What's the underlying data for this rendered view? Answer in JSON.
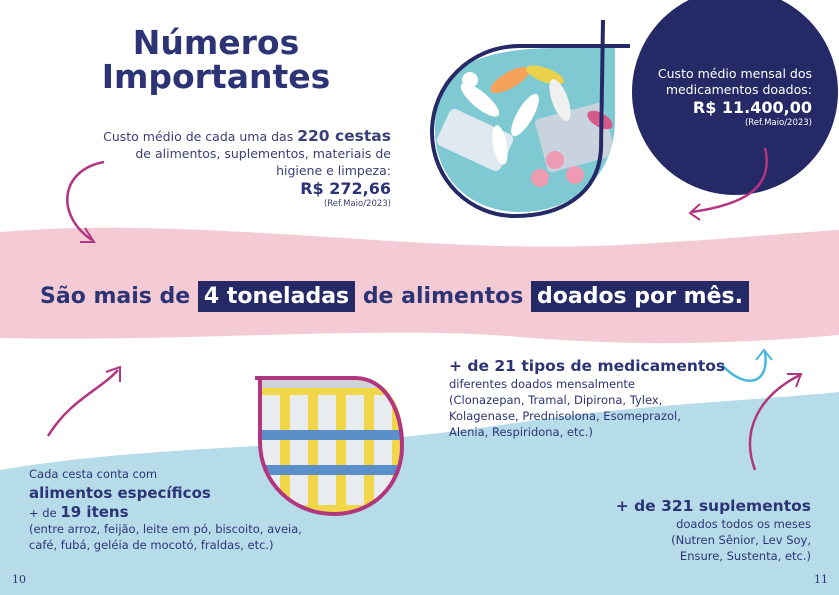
{
  "title": "Números\nImportantes",
  "cestas_block": {
    "prefix": "Custo médio de cada uma das",
    "highlight": "220 cestas",
    "rest": "de alimentos, suplementos, materiais de higiene e limpeza:",
    "price": "R$ 272,66",
    "ref": "(Ref.Maio/2023)"
  },
  "medicamentos_cost": {
    "label": "Custo médio mensal dos medicamentos doados:",
    "price": "R$ 11.400,00",
    "ref": "(Ref.Maio/2023)"
  },
  "banner": {
    "part1": "São mais de",
    "hl1": "4 toneladas",
    "part2": "de  alimentos",
    "hl2": "doados por mês."
  },
  "medicamentos_types": {
    "head": "+ de 21 tipos de medicamentos",
    "body": "diferentes doados mensalmente (Clonazepan, Tramal, Dipirona, Tylex, Kolagenase, Prednisolona, Esomeprazol, Alenia, Respiridona, etc.)"
  },
  "cesta_itens": {
    "line1": "Cada cesta conta com",
    "head": "alimentos específicos",
    "prefix": "+ de",
    "count": "19 itens",
    "list": "(entre arroz, feijão, leite em pó, biscoito, aveia, café, fubá, geléia de mocotó, fraldas, etc.)"
  },
  "suplementos": {
    "head": "+ de 321 suplementos",
    "body": "doados todos os meses (Nutren Sênior, Lev Soy, Ensure, Sustenta, etc.)"
  },
  "pages": {
    "left": "10",
    "right": "11"
  },
  "colors": {
    "navy": "#252a66",
    "pink_band": "#f4cbd4",
    "light_blue": "#b7dce9",
    "magenta": "#b1367f",
    "cyan": "#4ab8dd"
  }
}
